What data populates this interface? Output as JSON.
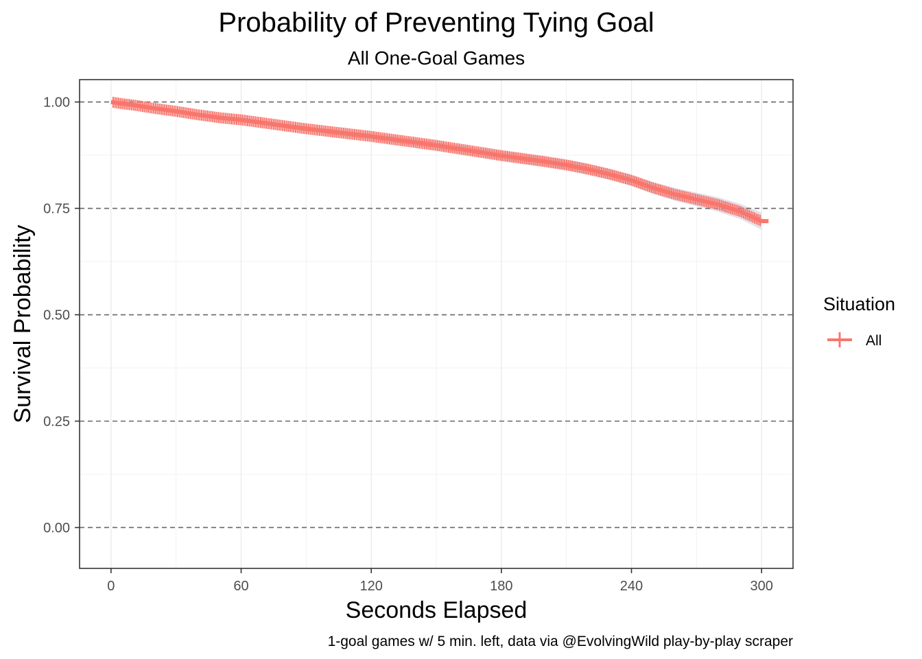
{
  "chart_data": {
    "type": "line",
    "title": "Probability of Preventing Tying Goal",
    "subtitle": "All One-Goal Games",
    "xlabel": "Seconds Elapsed",
    "ylabel": "Survival Probability",
    "caption": "1-goal games w/ 5 min. left, data via @EvolvingWild play-by-play scraper",
    "xlim": [
      -14.5,
      314.5
    ],
    "ylim": [
      -0.096,
      1.0525
    ],
    "x_ticks": [
      0,
      60,
      120,
      180,
      240,
      300
    ],
    "x_tick_labels": [
      "0",
      "60",
      "120",
      "180",
      "240",
      "300"
    ],
    "y_ticks": [
      0.0,
      0.25,
      0.5,
      0.75,
      1.0
    ],
    "y_tick_labels": [
      "0.00",
      "0.25",
      "0.50",
      "0.75",
      "1.00"
    ],
    "grid": true,
    "legend": {
      "title": "Situation",
      "position": "right",
      "entries": [
        "All"
      ]
    },
    "series": [
      {
        "name": "All",
        "color": "#F8766D",
        "band_color": "#DCDCE6",
        "x": [
          0,
          5,
          10,
          20,
          30,
          40,
          50,
          60,
          70,
          80,
          90,
          100,
          110,
          120,
          130,
          140,
          150,
          160,
          170,
          180,
          190,
          200,
          210,
          220,
          230,
          240,
          250,
          260,
          270,
          280,
          290,
          300
        ],
        "y": [
          1.0,
          0.996,
          0.993,
          0.985,
          0.978,
          0.97,
          0.963,
          0.958,
          0.951,
          0.944,
          0.937,
          0.931,
          0.925,
          0.919,
          0.912,
          0.905,
          0.898,
          0.89,
          0.882,
          0.874,
          0.867,
          0.86,
          0.852,
          0.842,
          0.83,
          0.816,
          0.798,
          0.783,
          0.771,
          0.759,
          0.743,
          0.72
        ],
        "lower": [
          1.0,
          0.994,
          0.99,
          0.982,
          0.974,
          0.966,
          0.958,
          0.953,
          0.946,
          0.938,
          0.931,
          0.924,
          0.918,
          0.912,
          0.904,
          0.897,
          0.889,
          0.881,
          0.873,
          0.864,
          0.857,
          0.849,
          0.841,
          0.83,
          0.818,
          0.803,
          0.784,
          0.768,
          0.755,
          0.742,
          0.725,
          0.7
        ],
        "upper": [
          1.0,
          0.998,
          0.996,
          0.988,
          0.982,
          0.974,
          0.968,
          0.963,
          0.956,
          0.95,
          0.943,
          0.938,
          0.932,
          0.926,
          0.92,
          0.913,
          0.907,
          0.899,
          0.891,
          0.884,
          0.877,
          0.871,
          0.863,
          0.854,
          0.842,
          0.829,
          0.812,
          0.798,
          0.787,
          0.776,
          0.761,
          0.74
        ]
      }
    ]
  }
}
